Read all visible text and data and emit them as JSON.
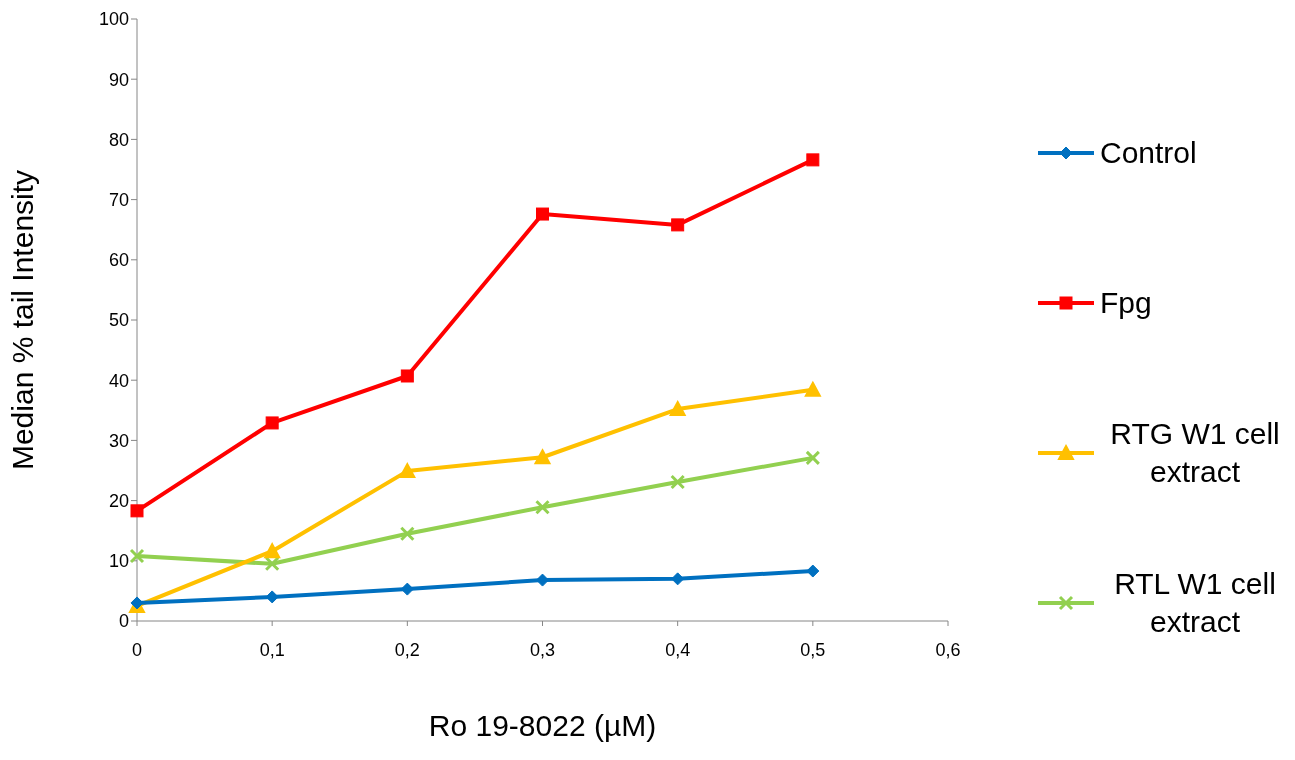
{
  "chart_data": {
    "type": "line",
    "xlabel": "Ro 19-8022 (µM)",
    "ylabel": "Median % tail Intensity",
    "x": [
      0,
      0.1,
      0.2,
      0.3,
      0.4,
      0.5
    ],
    "xlim": [
      0,
      0.6
    ],
    "xticks": [
      0,
      {
        "value": 0.1,
        "label": "0,1"
      },
      {
        "value": 0.2,
        "label": "0,2"
      },
      {
        "value": 0.3,
        "label": "0,3"
      },
      {
        "value": 0.4,
        "label": "0,4"
      },
      {
        "value": 0.5,
        "label": "0,5"
      },
      {
        "value": 0.6,
        "label": "0,6"
      }
    ],
    "ylim": [
      0,
      100
    ],
    "yticks": [
      0,
      10,
      20,
      30,
      40,
      50,
      60,
      70,
      80,
      90,
      100
    ],
    "grid": false,
    "legend": "right",
    "line_style": "solid",
    "series": [
      {
        "name": "Control",
        "color": "#0070c0",
        "marker": "diamond",
        "values": [
          3.0,
          4.0,
          5.3,
          6.8,
          7.0,
          8.3
        ]
      },
      {
        "name": "Fpg",
        "color": "#ff0000",
        "marker": "square",
        "values": [
          18.3,
          32.9,
          40.7,
          67.6,
          65.8,
          76.6
        ]
      },
      {
        "name": "RTG W1 cell extract",
        "color": "#ffc000",
        "marker": "triangle",
        "values": [
          2.5,
          11.6,
          24.9,
          27.2,
          35.2,
          38.4
        ]
      },
      {
        "name": "RTL W1 cell extract",
        "color": "#92d050",
        "marker": "cross",
        "values": [
          10.8,
          9.5,
          14.5,
          18.9,
          23.1,
          27.1
        ]
      }
    ]
  }
}
